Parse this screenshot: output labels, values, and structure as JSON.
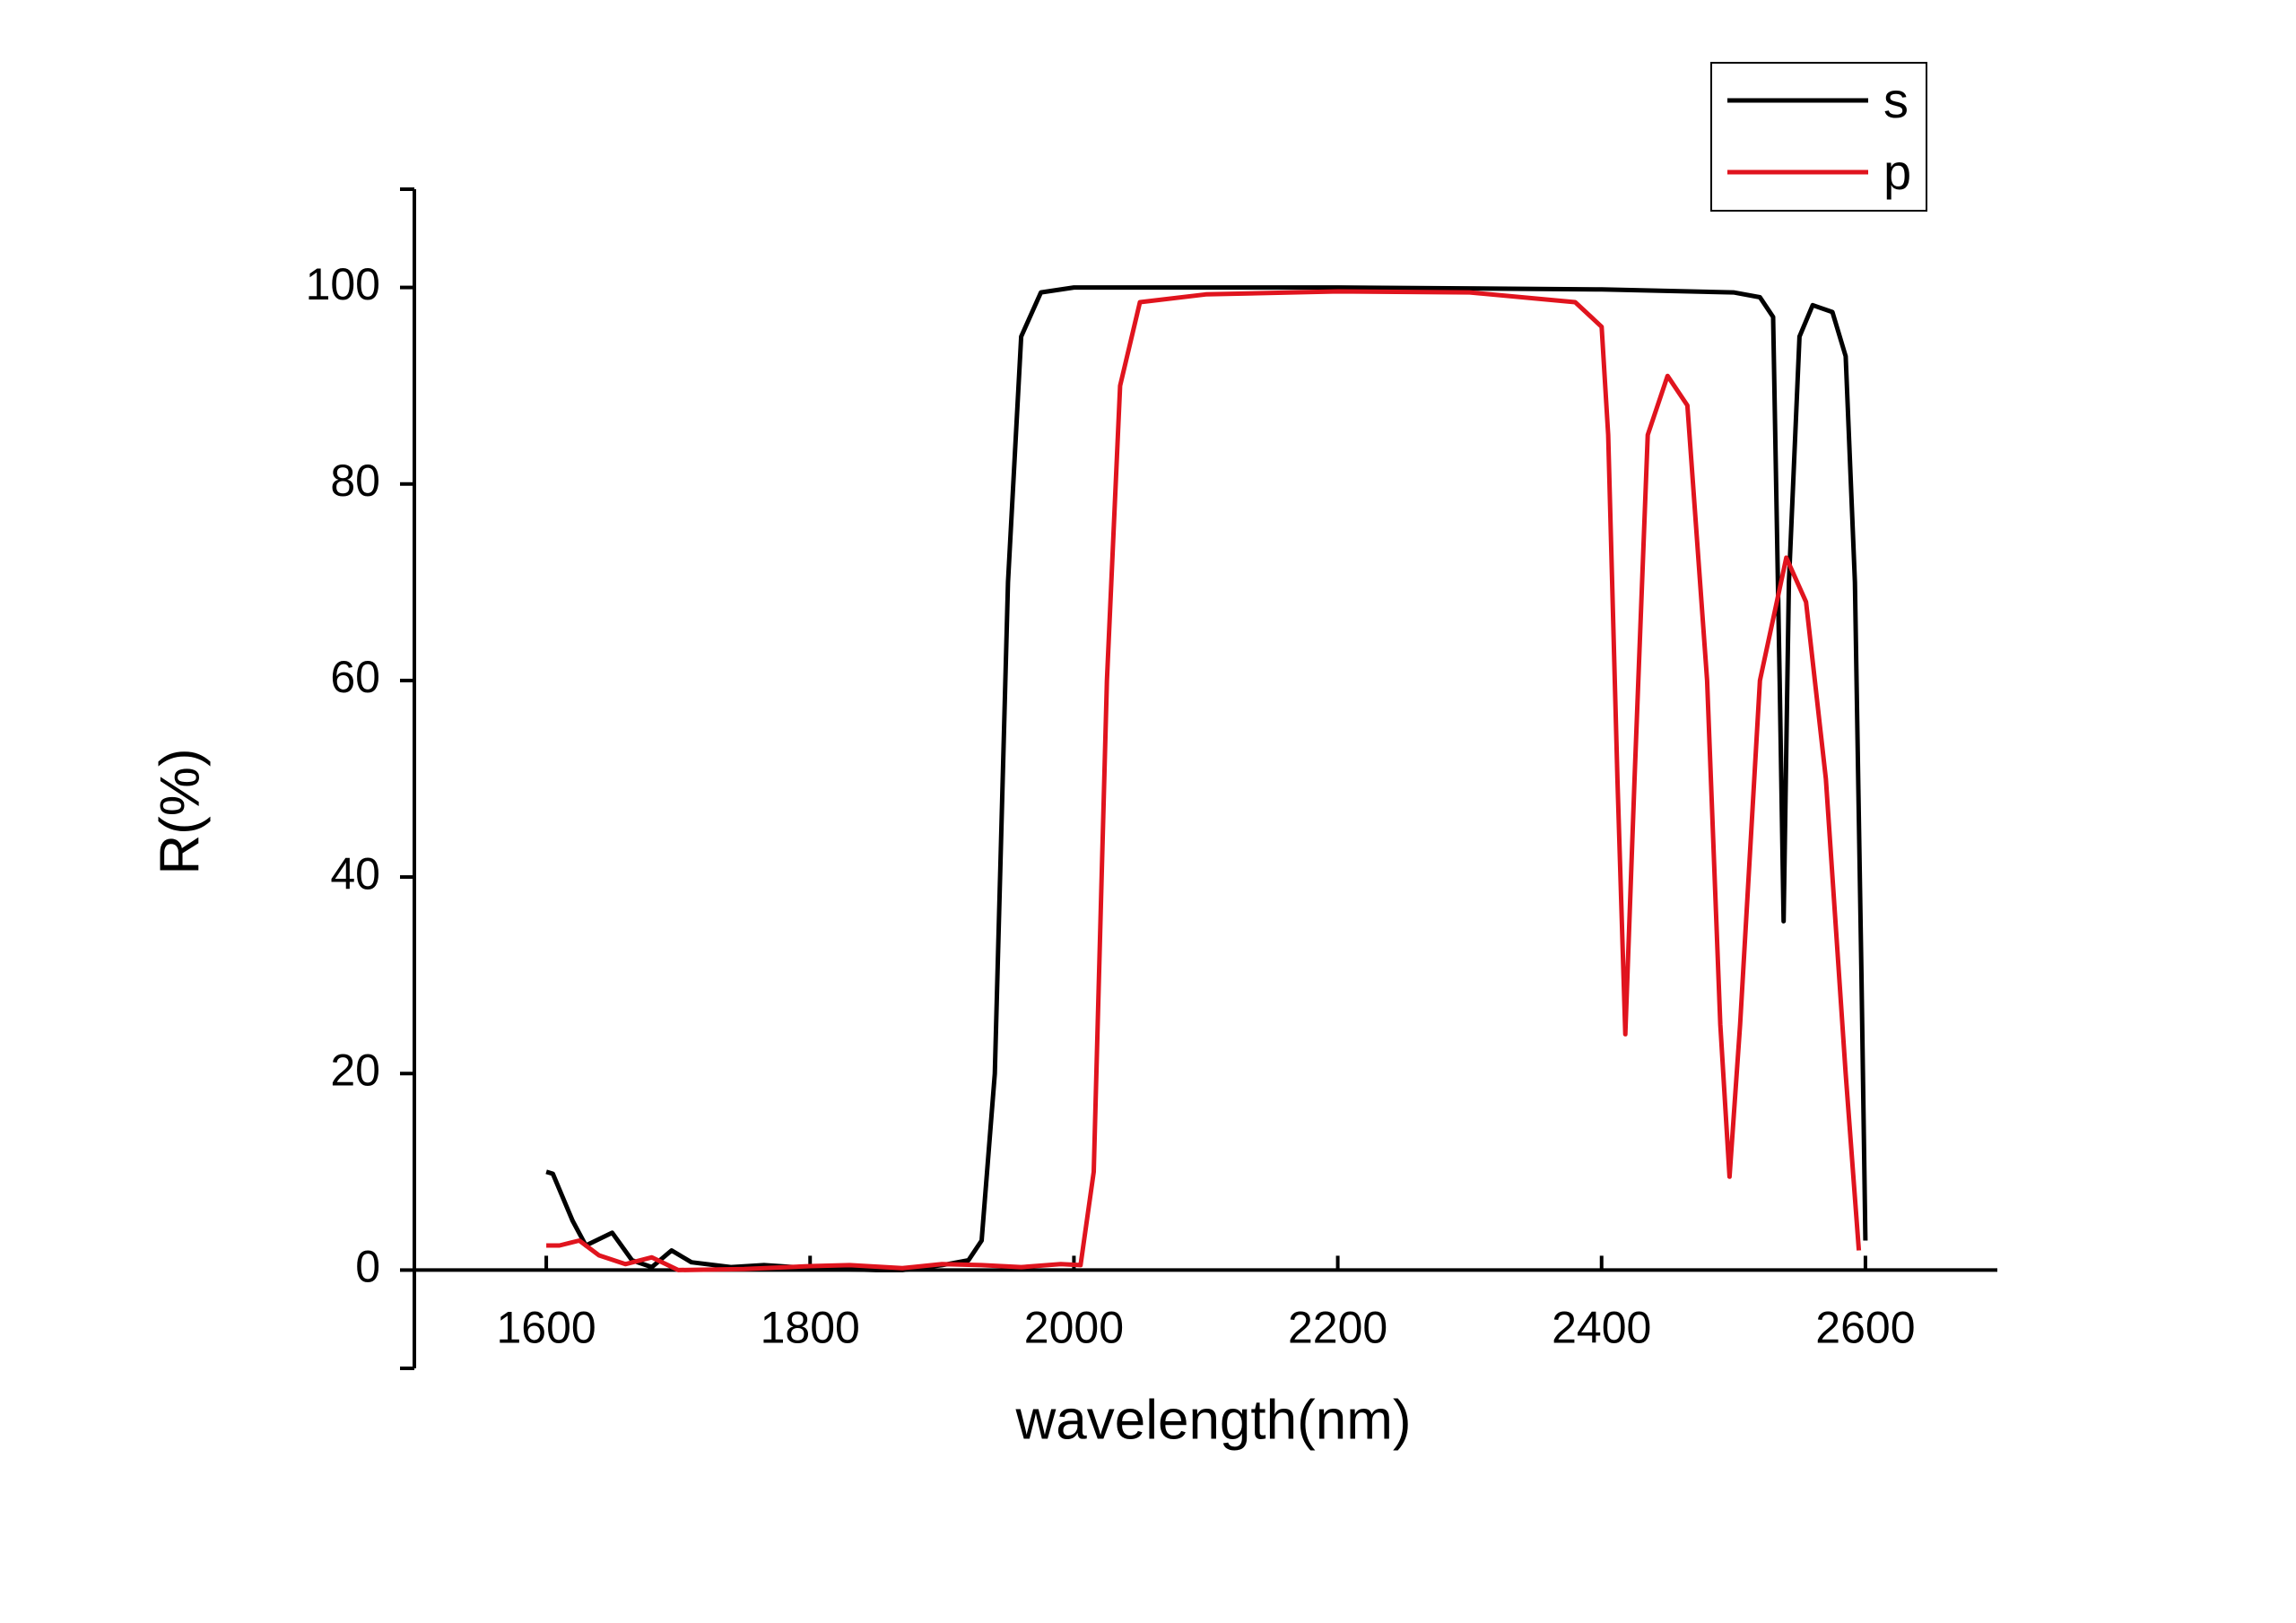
{
  "chart_data": {
    "type": "line",
    "xlabel": "wavelength(nm)",
    "ylabel": "R(%)",
    "xlim": [
      1500,
      2700
    ],
    "ylim": [
      -10,
      110
    ],
    "xticks": [
      1600,
      1800,
      2000,
      2200,
      2400,
      2600
    ],
    "yticks": [
      0,
      20,
      40,
      60,
      80,
      100
    ],
    "legend": "top right",
    "series": [
      {
        "name": "s",
        "color": "#000000",
        "x": [
          1600,
          1605,
          1620,
          1630,
          1650,
          1665,
          1680,
          1695,
          1710,
          1740,
          1765,
          1800,
          1850,
          1870,
          1900,
          1920,
          1930,
          1940,
          1950,
          1960,
          1975,
          2000,
          2200,
          2400,
          2500,
          2520,
          2530,
          2535,
          2538,
          2542,
          2550,
          2560,
          2575,
          2585,
          2592,
          2597,
          2600
        ],
        "values": [
          10,
          9.8,
          5,
          2.5,
          3.8,
          1,
          0.3,
          2,
          0.8,
          0.3,
          0.5,
          0.2,
          0,
          0,
          0.5,
          1,
          3,
          20,
          70,
          95,
          99.5,
          100,
          100,
          99.8,
          99.5,
          99,
          97,
          60,
          35.5,
          70,
          95,
          98.2,
          97.5,
          93,
          70,
          30,
          3
        ]
      },
      {
        "name": "p",
        "color": "#e0141e",
        "x": [
          1600,
          1610,
          1625,
          1640,
          1660,
          1680,
          1700,
          1750,
          1800,
          1830,
          1870,
          1900,
          1930,
          1960,
          1990,
          2005,
          2015,
          2025,
          2035,
          2050,
          2100,
          2200,
          2300,
          2380,
          2400,
          2405,
          2412,
          2418,
          2425,
          2435,
          2450,
          2465,
          2480,
          2490,
          2497,
          2505,
          2520,
          2540,
          2555,
          2570,
          2585,
          2595
        ],
        "values": [
          2.5,
          2.5,
          3,
          1.5,
          0.6,
          1.3,
          0,
          0.1,
          0.4,
          0.5,
          0.2,
          0.6,
          0.5,
          0.3,
          0.6,
          0.5,
          10,
          60,
          90,
          98.5,
          99.3,
          99.6,
          99.5,
          98.5,
          96,
          85,
          50,
          24,
          50,
          85,
          91,
          88,
          60,
          25,
          9.5,
          25,
          60,
          72.5,
          68,
          50,
          20,
          2
        ]
      }
    ]
  }
}
